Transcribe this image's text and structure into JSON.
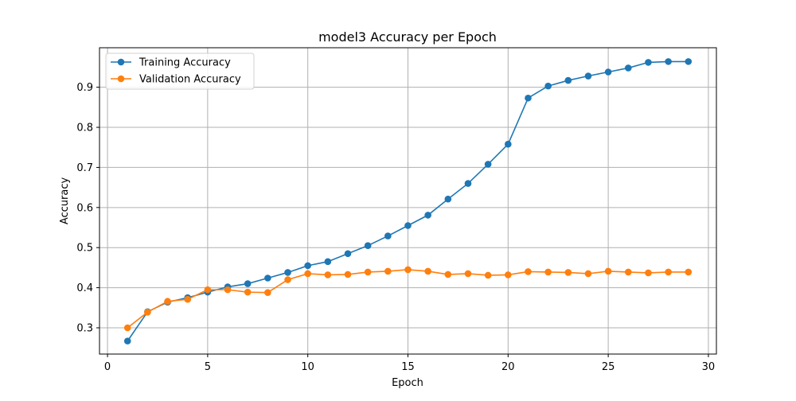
{
  "chart_data": {
    "type": "line",
    "title": "model3 Accuracy per Epoch",
    "xlabel": "Epoch",
    "ylabel": "Accuracy",
    "xlim": [
      -0.4,
      30.4
    ],
    "ylim": [
      0.2345,
      0.9985
    ],
    "xticks": [
      0,
      5,
      10,
      15,
      20,
      25,
      30
    ],
    "yticks": [
      0.3,
      0.4,
      0.5,
      0.6,
      0.7,
      0.8,
      0.9
    ],
    "grid": true,
    "legend_position": "top-left",
    "x": [
      1,
      2,
      3,
      4,
      5,
      6,
      7,
      8,
      9,
      10,
      11,
      12,
      13,
      14,
      15,
      16,
      17,
      18,
      19,
      20,
      21,
      22,
      23,
      24,
      25,
      26,
      27,
      28,
      29
    ],
    "series": [
      {
        "name": "Training Accuracy",
        "color": "#1f77b4",
        "values": [
          0.267,
          0.34,
          0.364,
          0.375,
          0.389,
          0.402,
          0.41,
          0.424,
          0.438,
          0.455,
          0.465,
          0.485,
          0.505,
          0.529,
          0.555,
          0.581,
          0.621,
          0.66,
          0.708,
          0.758,
          0.873,
          0.903,
          0.917,
          0.928,
          0.938,
          0.948,
          0.962,
          0.964,
          0.964
        ]
      },
      {
        "name": "Validation Accuracy",
        "color": "#ff7f0e",
        "values": [
          0.3,
          0.339,
          0.366,
          0.371,
          0.395,
          0.395,
          0.389,
          0.388,
          0.42,
          0.435,
          0.432,
          0.433,
          0.439,
          0.441,
          0.445,
          0.441,
          0.433,
          0.435,
          0.431,
          0.432,
          0.44,
          0.439,
          0.438,
          0.435,
          0.441,
          0.439,
          0.437,
          0.439,
          0.439
        ]
      }
    ]
  }
}
